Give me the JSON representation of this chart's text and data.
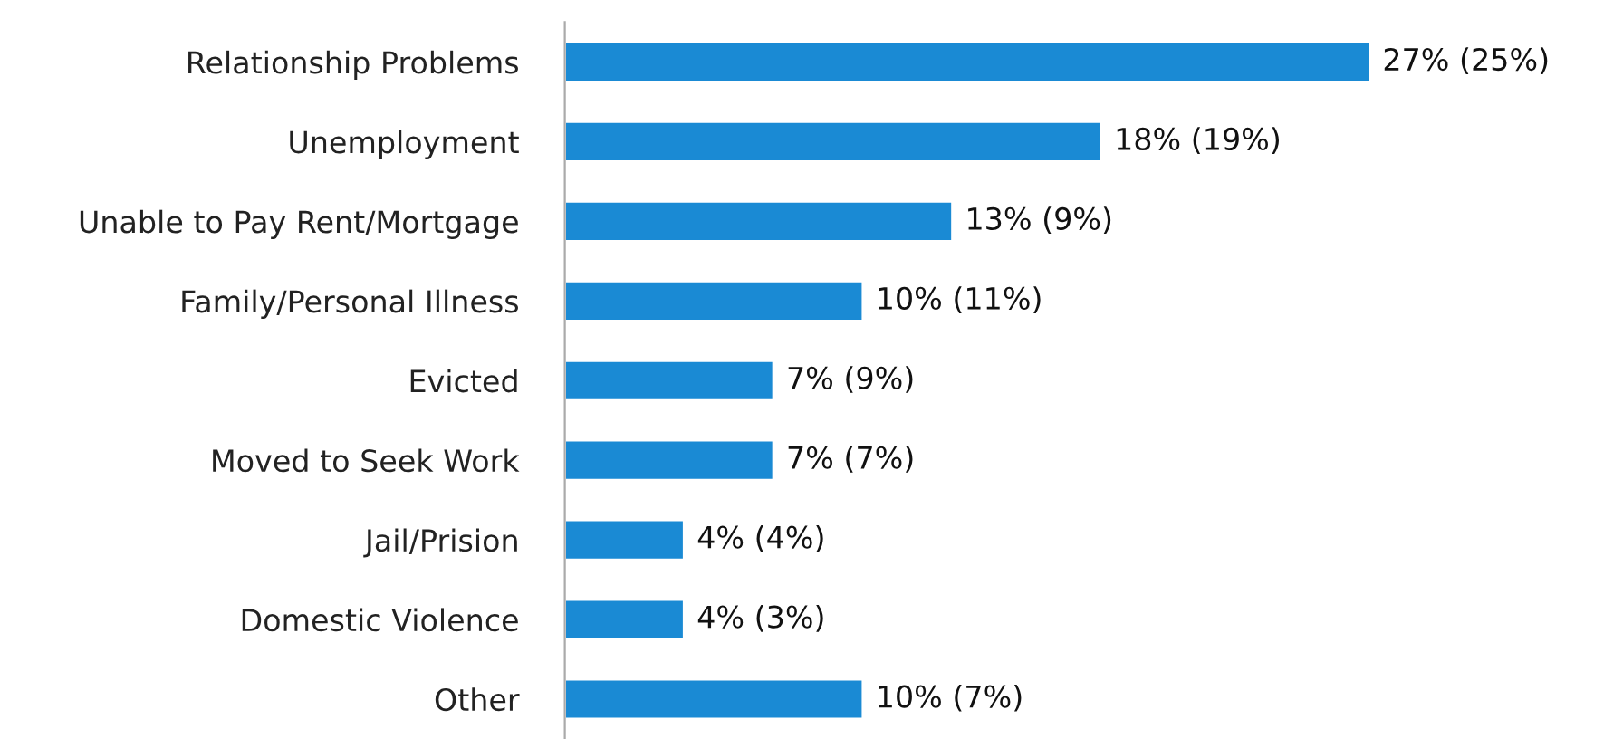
{
  "chart_data": {
    "type": "bar",
    "orientation": "horizontal",
    "color": "#1a8ad4",
    "categories": [
      "Relationship Problems",
      "Unemployment",
      "Unable to Pay Rent/Mortgage",
      "Family/Personal Illness",
      "Evicted",
      "Moved to Seek Work",
      "Jail/Prision",
      "Domestic Violence",
      "Other"
    ],
    "values": [
      27,
      18,
      13,
      10,
      7,
      7,
      4,
      4,
      10
    ],
    "value_labels": [
      "27% (25%)",
      "18% (19%)",
      "13% (9%)",
      "10% (11%)",
      "7% (9%)",
      "7% (7%)",
      "4% (4%)",
      "4% (3%)",
      "10% (7%)"
    ],
    "grid": false,
    "legend": false
  }
}
